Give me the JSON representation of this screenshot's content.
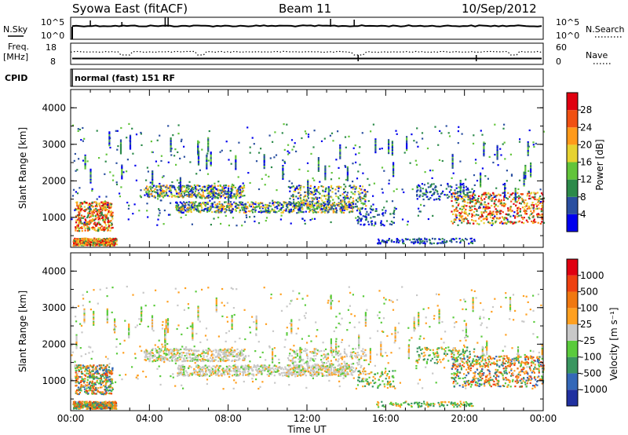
{
  "header": {
    "station": "Syowa East (fitACF)",
    "beam": "Beam 11",
    "date": "10/Sep/2012"
  },
  "top_panel": {
    "left_label": "N.Sky",
    "right_label": "N.Search",
    "ticks_left": [
      "10^5",
      "10^0"
    ],
    "ticks_right": [
      "10^5",
      "10^0"
    ]
  },
  "freq_panel": {
    "left_label_1": "Freq.",
    "left_label_2": "[MHz]",
    "ticks_left": [
      "18",
      "8"
    ],
    "ticks_right": [
      "60",
      "0"
    ],
    "right_label": "Nave"
  },
  "cpid": {
    "label": "CPID",
    "value": "normal (fast) 151 RF"
  },
  "chart_data": [
    {
      "type": "heatmap",
      "name": "power",
      "ylabel": "Slant Range [km]",
      "ylim": [
        180,
        4500
      ],
      "yticks": [
        "1000",
        "2000",
        "3000",
        "4000"
      ],
      "xlim_hours": [
        0,
        24
      ],
      "colorbar": {
        "label": "Power [dB]",
        "ticks": [
          "4",
          "8",
          "12",
          "16",
          "20",
          "24",
          "28"
        ],
        "colors": [
          "#0000ee",
          "#2a4fa0",
          "#2c8a4a",
          "#62c43a",
          "#e6d230",
          "#ff9a1a",
          "#f05012",
          "#e00010"
        ]
      },
      "scatter_groups": [
        {
          "t": [
            0.2,
            2.0
          ],
          "r": [
            800,
            1400
          ],
          "value": "high-power"
        },
        {
          "t": [
            0.0,
            2.5
          ],
          "r": [
            300,
            500
          ],
          "value": "high-power"
        },
        {
          "t": [
            3.5,
            9.0
          ],
          "r": [
            1550,
            1900
          ],
          "value": "mixed"
        },
        {
          "t": [
            5.5,
            14.0
          ],
          "r": [
            1100,
            1450
          ],
          "value": "mixed"
        },
        {
          "t": [
            10.5,
            15.5
          ],
          "r": [
            1300,
            1900
          ],
          "value": "mixed"
        },
        {
          "t": [
            19.0,
            24.0
          ],
          "r": [
            900,
            1900
          ],
          "value": "high-power"
        }
      ]
    },
    {
      "type": "heatmap",
      "name": "velocity",
      "ylabel": "Slant Range [km]",
      "ylim": [
        180,
        4500
      ],
      "yticks": [
        "1000",
        "2000",
        "3000",
        "4000"
      ],
      "xlabel": "Time UT",
      "xticks": [
        "00:00",
        "04:00",
        "08:00",
        "12:00",
        "16:00",
        "20:00",
        "00:00"
      ],
      "colorbar": {
        "label": "Velocity [m s⁻¹]",
        "ticks": [
          "1000",
          "500",
          "100",
          "25",
          "-25",
          "-100",
          "-500",
          "-1000"
        ],
        "colors": [
          "#2030a0",
          "#3468b8",
          "#3a9660",
          "#5acb3c",
          "#c8c8c8",
          "#ffa020",
          "#f07810",
          "#ee4010",
          "#e00010"
        ]
      },
      "scatter_groups": [
        {
          "t": [
            0.0,
            2.5
          ],
          "r": [
            250,
            1400
          ],
          "value": "negative"
        },
        {
          "t": [
            3.5,
            9.0
          ],
          "r": [
            1550,
            1900
          ],
          "value": "near-zero"
        },
        {
          "t": [
            5.5,
            14.0
          ],
          "r": [
            1100,
            1450
          ],
          "value": "near-zero"
        },
        {
          "t": [
            19.0,
            24.0
          ],
          "r": [
            900,
            1900
          ],
          "value": "negative"
        }
      ]
    }
  ]
}
